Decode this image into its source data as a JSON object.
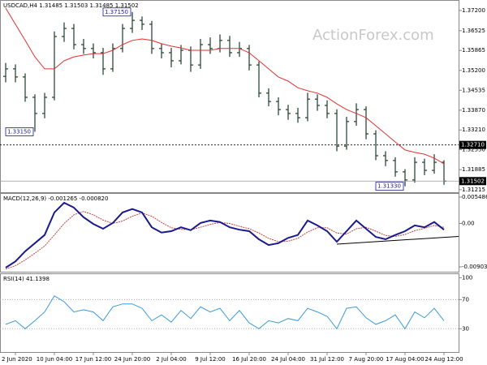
{
  "chart_data": [
    {
      "type": "ohlc",
      "title": "USDCAD,H4 1.31485 1.31503 1.31485 1.31502",
      "watermark": "ActionForex.com",
      "color": "#1d3b2a",
      "open": [
        1.35,
        1.3525,
        1.3498,
        1.343,
        1.3376,
        1.343,
        1.3633,
        1.366,
        1.3606,
        1.3593,
        1.3579,
        1.3525,
        1.3593,
        1.366,
        1.3687,
        1.3674,
        1.3593,
        1.3579,
        1.3552,
        1.3587,
        1.3538,
        1.3606,
        1.3593,
        1.362,
        1.3579,
        1.3593,
        1.3538,
        1.3444,
        1.3416,
        1.3389,
        1.3376,
        1.3362,
        1.3424,
        1.3403,
        1.3376,
        1.3267,
        1.3349,
        1.3389,
        1.3308,
        1.3235,
        1.3219,
        1.3181,
        1.3154,
        1.3213,
        1.3186,
        1.3213
      ],
      "high": [
        1.3545,
        1.354,
        1.351,
        1.344,
        1.3445,
        1.365,
        1.368,
        1.3675,
        1.3625,
        1.361,
        1.3595,
        1.361,
        1.3675,
        1.3715,
        1.37,
        1.3685,
        1.361,
        1.3595,
        1.3605,
        1.36,
        1.3625,
        1.363,
        1.364,
        1.3635,
        1.3615,
        1.3605,
        1.355,
        1.346,
        1.343,
        1.3405,
        1.3395,
        1.3445,
        1.344,
        1.342,
        1.339,
        1.3365,
        1.341,
        1.34,
        1.332,
        1.325,
        1.323,
        1.319,
        1.323,
        1.3225,
        1.324,
        1.322
      ],
      "low": [
        1.348,
        1.348,
        1.3415,
        1.3315,
        1.336,
        1.342,
        1.3615,
        1.359,
        1.3575,
        1.356,
        1.3505,
        1.3515,
        1.358,
        1.3645,
        1.3655,
        1.3575,
        1.356,
        1.353,
        1.354,
        1.3515,
        1.3525,
        1.3575,
        1.358,
        1.3565,
        1.3565,
        1.352,
        1.343,
        1.34,
        1.337,
        1.3355,
        1.3345,
        1.335,
        1.3385,
        1.336,
        1.325,
        1.3255,
        1.3335,
        1.329,
        1.322,
        1.32,
        1.3165,
        1.3133,
        1.3145,
        1.317,
        1.3175,
        1.3138
      ],
      "close": [
        1.3525,
        1.3498,
        1.343,
        1.3376,
        1.343,
        1.3633,
        1.366,
        1.3606,
        1.3593,
        1.3579,
        1.3525,
        1.3593,
        1.366,
        1.3687,
        1.3674,
        1.3593,
        1.3579,
        1.3552,
        1.3587,
        1.3538,
        1.3606,
        1.3593,
        1.362,
        1.3579,
        1.3593,
        1.3538,
        1.3444,
        1.3416,
        1.3389,
        1.3376,
        1.3362,
        1.3424,
        1.3403,
        1.3376,
        1.3267,
        1.3349,
        1.3389,
        1.3308,
        1.3235,
        1.3219,
        1.3181,
        1.3154,
        1.3213,
        1.3186,
        1.3213,
        1.315
      ],
      "ma_color": "#e03030",
      "ma_values": [
        1.3728,
        1.3674,
        1.362,
        1.3565,
        1.3525,
        1.3525,
        1.3552,
        1.3565,
        1.3571,
        1.3576,
        1.3576,
        1.3587,
        1.3606,
        1.362,
        1.3625,
        1.362,
        1.3609,
        1.3601,
        1.3595,
        1.3587,
        1.3587,
        1.3587,
        1.3593,
        1.3593,
        1.3593,
        1.3579,
        1.3552,
        1.3525,
        1.3498,
        1.3484,
        1.3462,
        1.3452,
        1.3444,
        1.343,
        1.3408,
        1.3389,
        1.3376,
        1.3362,
        1.3335,
        1.3308,
        1.3281,
        1.3254,
        1.3246,
        1.324,
        1.3227,
        1.3208
      ],
      "ylim": [
        1.3113,
        1.3755
      ],
      "yticks": [
        {
          "value": 1.372,
          "label": "1.37200"
        },
        {
          "value": 1.36525,
          "label": "1.36525"
        },
        {
          "value": 1.35865,
          "label": "1.35865"
        },
        {
          "value": 1.352,
          "label": "1.35200"
        },
        {
          "value": 1.34535,
          "label": "1.34535"
        },
        {
          "value": 1.3387,
          "label": "1.33870"
        },
        {
          "value": 1.3321,
          "label": "1.33210"
        },
        {
          "value": 1.3255,
          "label": "1.32550"
        },
        {
          "value": 1.31885,
          "label": "1.31885"
        },
        {
          "value": 1.31215,
          "label": "1.31215"
        }
      ],
      "level_line": {
        "value": 1.3271,
        "label": "1.32710"
      },
      "last_price": {
        "value": 1.31502,
        "label": "1.31502"
      },
      "annotations": [
        {
          "x": 13,
          "value": 1.3715,
          "label": "1.37150"
        },
        {
          "x": 3,
          "value": 1.3315,
          "label": "1.33150"
        },
        {
          "x": 41,
          "value": 1.3133,
          "label": "1.31330"
        }
      ]
    },
    {
      "type": "macd",
      "title": "MACD(12,26,9) -0.001265 -0.000820",
      "macd_color": "#1a1a8c",
      "signal_color": "#c04040",
      "macd": [
        -0.0092,
        -0.0079,
        -0.0058,
        -0.0041,
        -0.0024,
        0.0023,
        0.0043,
        0.0033,
        0.0013,
        -0.0001,
        -0.0011,
        0.0001,
        0.0023,
        0.003,
        0.0023,
        -0.0008,
        -0.0019,
        -0.0016,
        -0.0008,
        -0.0014,
        0.0001,
        0.0006,
        0.0003,
        -0.0008,
        -0.0013,
        -0.0016,
        -0.0033,
        -0.0045,
        -0.0041,
        -0.003,
        -0.0024,
        0.0006,
        -0.0004,
        -0.0016,
        -0.0038,
        -0.0016,
        0.0006,
        -0.0011,
        -0.0028,
        -0.0033,
        -0.0024,
        -0.0016,
        -0.0004,
        -0.0008,
        0.0003,
        -0.0013
      ],
      "signal": [
        -0.0095,
        -0.0088,
        -0.0076,
        -0.0062,
        -0.0047,
        -0.0024,
        0.0,
        0.0018,
        0.0025,
        0.0018,
        0.0007,
        0.0,
        0.0005,
        0.0015,
        0.0022,
        0.0015,
        0.0002,
        -0.0009,
        -0.0012,
        -0.0013,
        -0.0008,
        -0.0002,
        0.0002,
        0.0,
        -0.0006,
        -0.0011,
        -0.002,
        -0.0031,
        -0.0038,
        -0.0037,
        -0.0031,
        -0.0018,
        -0.0009,
        -0.0009,
        -0.002,
        -0.0022,
        -0.0011,
        -0.0008,
        -0.0016,
        -0.0025,
        -0.0027,
        -0.0023,
        -0.0015,
        -0.001,
        -0.0004,
        -0.0008
      ],
      "trendline": {
        "x": [
          34,
          46.5
        ],
        "values": [
          -0.0043,
          -0.0027
        ]
      },
      "ylim": [
        -0.01005,
        0.00633
      ],
      "yticks": [
        0.005486,
        {
          "value": 0,
          "label": "0.00"
        },
        -0.009034
      ]
    },
    {
      "type": "rsi",
      "title": "RSI(14) 41.1398",
      "color": "#3a9ad9",
      "values": [
        36,
        41,
        30,
        41,
        53,
        75,
        67,
        53,
        56,
        53,
        41,
        60,
        64,
        64,
        58,
        41,
        49,
        39,
        55,
        44,
        60,
        53,
        58,
        41,
        55,
        38,
        30,
        41,
        38,
        44,
        41,
        58,
        53,
        47,
        30,
        58,
        60,
        45,
        36,
        41,
        49,
        30,
        53,
        45,
        58,
        41
      ],
      "categories": [
        null,
        "2 Jun 2020",
        null,
        null,
        null,
        "10 Jun 04:00",
        null,
        null,
        null,
        "17 Jun 12:00",
        null,
        null,
        null,
        "24 Jun 20:00",
        null,
        null,
        null,
        "2 Jul 04:00",
        null,
        null,
        null,
        "9 Jul 12:00",
        null,
        null,
        null,
        "16 Jul 20:00",
        null,
        null,
        null,
        "24 Jul 04:00",
        null,
        null,
        null,
        "31 Jul 12:00",
        null,
        null,
        null,
        "7 Aug 20:00",
        null,
        null,
        null,
        "17 Aug 04:00",
        null,
        null,
        null,
        "24 Aug 12:00"
      ],
      "ylim": [
        -2,
        106
      ],
      "yticks": [
        100,
        70,
        30
      ],
      "levels": [
        70,
        30
      ]
    }
  ]
}
